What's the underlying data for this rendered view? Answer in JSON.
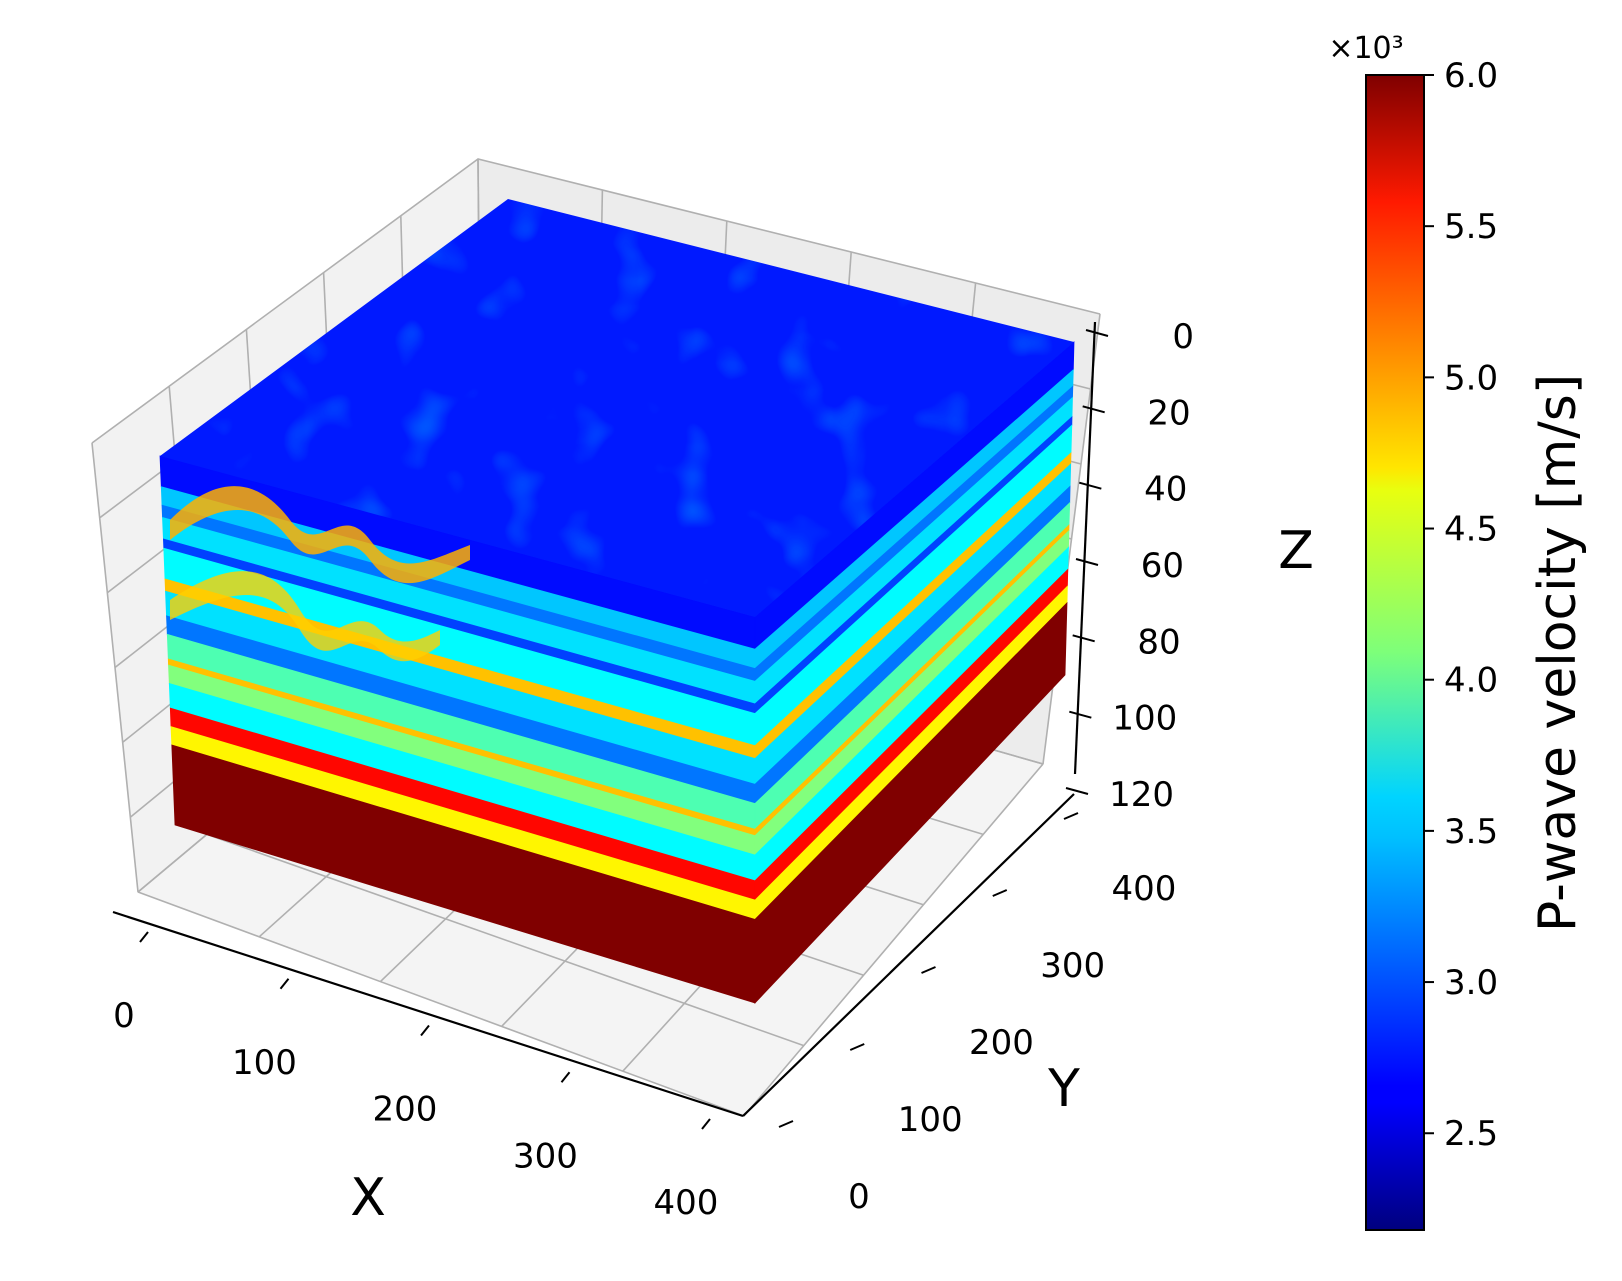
{
  "chart_data": {
    "type": "heatmap",
    "subtype": "3d-volume",
    "colormap": "jet",
    "grid": true,
    "legend_placement": "right colorbar",
    "axes": {
      "x": {
        "label": "X",
        "ticks": [
          0,
          100,
          200,
          300,
          400
        ],
        "range": [
          0,
          400
        ]
      },
      "y": {
        "label": "Y",
        "ticks": [
          0,
          100,
          200,
          300,
          400
        ],
        "range": [
          0,
          400
        ]
      },
      "z": {
        "label": "Z",
        "ticks": [
          0,
          20,
          40,
          60,
          80,
          100,
          120
        ],
        "range": [
          0,
          120
        ],
        "inverted": true
      }
    },
    "colorbar": {
      "label": "P-wave velocity [m/s]",
      "multiplier": "×10³",
      "ticks": [
        "2.5",
        "3.0",
        "3.5",
        "4.0",
        "4.5",
        "5.0",
        "5.5",
        "6.0"
      ],
      "range": [
        2.18,
        6.0
      ]
    },
    "layers": [
      {
        "z_top": 0,
        "z_bottom": 10,
        "velocity": 2.7
      },
      {
        "z_top": 10,
        "z_bottom": 16,
        "velocity": 3.4
      },
      {
        "z_top": 16,
        "z_bottom": 20,
        "velocity": 3.1
      },
      {
        "z_top": 20,
        "z_bottom": 27,
        "velocity": 3.5
      },
      {
        "z_top": 27,
        "z_bottom": 30,
        "velocity": 2.9
      },
      {
        "z_top": 30,
        "z_bottom": 40,
        "velocity": 3.6
      },
      {
        "z_top": 40,
        "z_bottom": 44,
        "velocity": 4.8
      },
      {
        "z_top": 44,
        "z_bottom": 52,
        "velocity": 3.5
      },
      {
        "z_top": 52,
        "z_bottom": 58,
        "velocity": 3.1
      },
      {
        "z_top": 58,
        "z_bottom": 66,
        "velocity": 3.9
      },
      {
        "z_top": 66,
        "z_bottom": 68,
        "velocity": 4.8
      },
      {
        "z_top": 68,
        "z_bottom": 74,
        "velocity": 4.1
      },
      {
        "z_top": 74,
        "z_bottom": 82,
        "velocity": 3.6
      },
      {
        "z_top": 82,
        "z_bottom": 88,
        "velocity": 5.5
      },
      {
        "z_top": 88,
        "z_bottom": 94,
        "velocity": 4.6
      },
      {
        "z_top": 94,
        "z_bottom": 120,
        "velocity": 6.0
      }
    ]
  }
}
